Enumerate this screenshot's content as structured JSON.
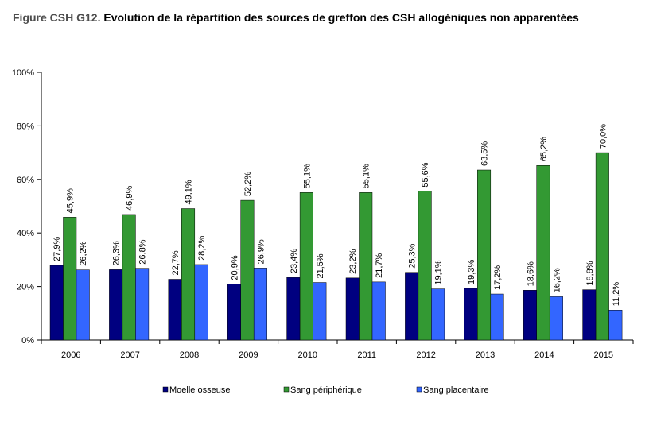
{
  "title_prefix": "Figure CSH G12.",
  "title_main": "Evolution de la répartition des sources de greffon des CSH allogéniques non apparentées",
  "chart_data": {
    "type": "bar",
    "title": "Evolution de la répartition des sources de greffon des CSH allogéniques non apparentées",
    "categories": [
      "2006",
      "2007",
      "2008",
      "2009",
      "2010",
      "2011",
      "2012",
      "2013",
      "2014",
      "2015"
    ],
    "ylim": [
      0,
      100
    ],
    "yticks": [
      "0%",
      "20%",
      "40%",
      "60%",
      "80%",
      "100%"
    ],
    "grid": false,
    "legend_position": "bottom",
    "series": [
      {
        "name": "Moelle osseuse",
        "color": "#000080",
        "values": [
          27.9,
          26.3,
          22.7,
          20.9,
          23.4,
          23.2,
          25.3,
          19.3,
          18.6,
          18.8
        ],
        "labels": [
          "27,9%",
          "26,3%",
          "22,7%",
          "20,9%",
          "23,4%",
          "23,2%",
          "25,3%",
          "19,3%",
          "18,6%",
          "18,8%"
        ]
      },
      {
        "name": "Sang périphérique",
        "color": "#339933",
        "values": [
          45.9,
          46.9,
          49.1,
          52.2,
          55.1,
          55.1,
          55.6,
          63.5,
          65.2,
          70.0
        ],
        "labels": [
          "45,9%",
          "46,9%",
          "49,1%",
          "52,2%",
          "55,1%",
          "55,1%",
          "55,6%",
          "63,5%",
          "65,2%",
          "70,0%"
        ]
      },
      {
        "name": "Sang placentaire",
        "color": "#3366ff",
        "values": [
          26.2,
          26.8,
          28.2,
          26.9,
          21.5,
          21.7,
          19.1,
          17.2,
          16.2,
          11.2
        ],
        "labels": [
          "26,2%",
          "26,8%",
          "28,2%",
          "26,9%",
          "21,5%",
          "21,7%",
          "19,1%",
          "17,2%",
          "16,2%",
          "11,2%"
        ]
      }
    ]
  }
}
